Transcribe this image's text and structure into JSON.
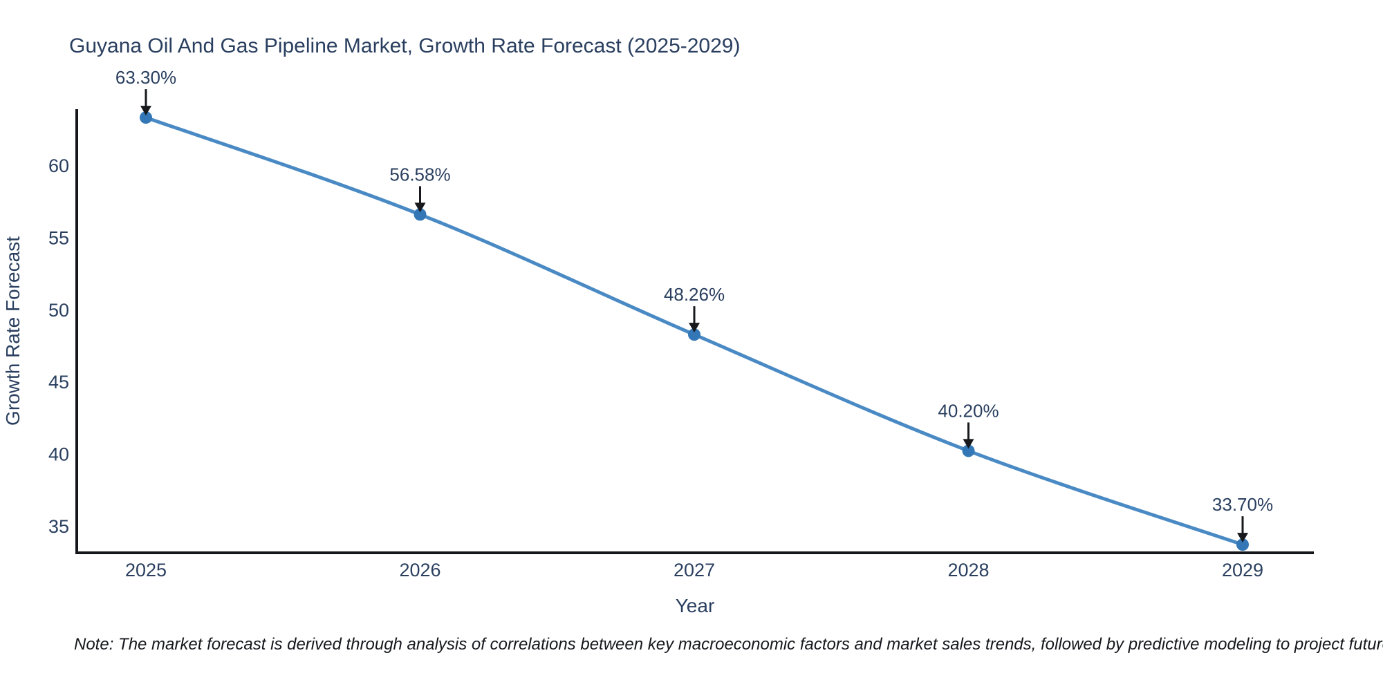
{
  "note": "Note: The market forecast is derived through analysis of correlations between key macroeconomic factors and market sales trends, followed by predictive modeling to project future sales",
  "chart_data": {
    "type": "line",
    "title": "Guyana Oil And Gas Pipeline Market, Growth Rate Forecast (2025-2029)",
    "xlabel": "Year",
    "ylabel": "Growth Rate Forecast",
    "x": [
      2025,
      2026,
      2027,
      2028,
      2029
    ],
    "x_ticks": [
      "2025",
      "2026",
      "2027",
      "2028",
      "2029"
    ],
    "series": [
      {
        "name": "Growth Rate Forecast",
        "values": [
          63.3,
          56.58,
          48.26,
          40.2,
          33.7
        ]
      }
    ],
    "point_labels": [
      "63.30%",
      "56.58%",
      "48.26%",
      "40.20%",
      "33.70%"
    ],
    "y_ticks": [
      35,
      40,
      45,
      50,
      55,
      60
    ],
    "ylim": [
      33.1,
      63.9
    ],
    "grid": false,
    "legend": "none",
    "line_shape": "spline",
    "colors": {
      "line": "#4a8ac4",
      "marker": "#3377b6",
      "arrow": "#17191c",
      "axis": "#14161a",
      "text": "#2a3f5f",
      "note_text": "#16181d",
      "background": "#ffffff"
    }
  }
}
